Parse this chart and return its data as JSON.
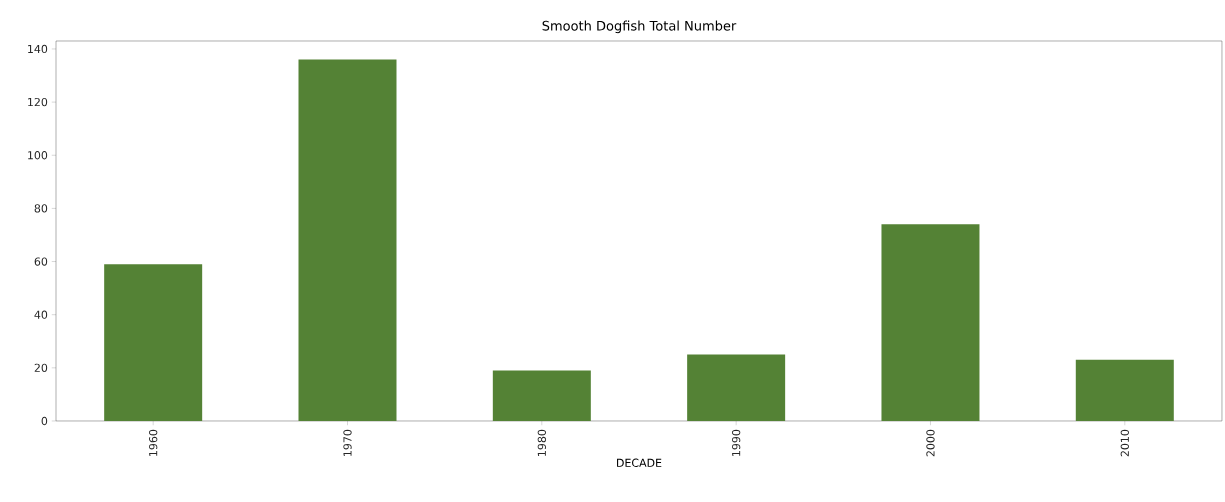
{
  "chart_data": {
    "type": "bar",
    "title": "Smooth Dogfish Total Number",
    "xlabel": "DECADE",
    "categories": [
      "1960",
      "1970",
      "1980",
      "1990",
      "2000",
      "2010"
    ],
    "values": [
      59,
      136,
      19,
      25,
      74,
      23
    ],
    "color": "#548235",
    "ylim": [
      0,
      143
    ],
    "yticks": [
      0,
      20,
      40,
      60,
      80,
      100,
      120,
      140
    ]
  }
}
